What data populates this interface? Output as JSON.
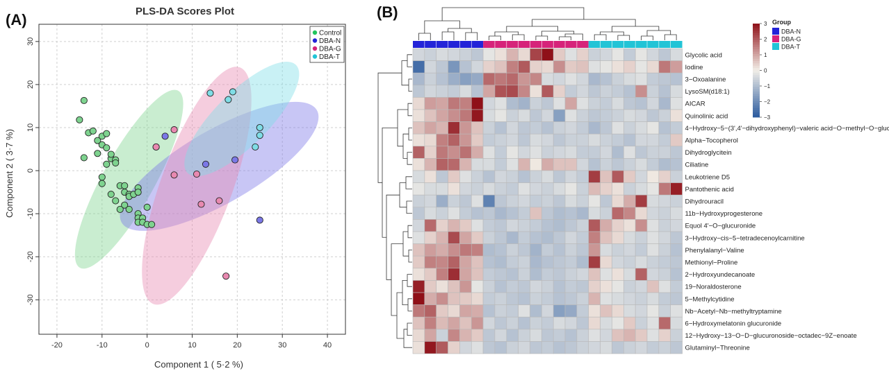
{
  "chart_data": [
    {
      "type": "scatter",
      "panel_label": "(A)",
      "title": "PLS-DA Scores Plot",
      "xlabel": "Component 1 ( 5·2 %)",
      "ylabel": "Component 2 ( 3·7 %)",
      "xlim": [
        -24,
        44
      ],
      "ylim": [
        -38,
        34
      ],
      "xticks": [
        -20,
        -10,
        0,
        10,
        20,
        30,
        40
      ],
      "yticks": [
        -30,
        -20,
        -10,
        0,
        10,
        20,
        30
      ],
      "grid": true,
      "legend_position": "top-right",
      "series": [
        {
          "name": "Control",
          "color": "#22c55e",
          "fill": "#7ed38f",
          "ellipse": {
            "cx": -4,
            "cy": -2,
            "rx": 22.5,
            "ry": 6.0,
            "angle_deg": -61
          },
          "points": [
            [
              -14,
              16.3
            ],
            [
              -15,
              11.8
            ],
            [
              -13,
              8.8
            ],
            [
              -14,
              3
            ],
            [
              -12,
              9.2
            ],
            [
              -11,
              7
            ],
            [
              -11,
              4
            ],
            [
              -10,
              8
            ],
            [
              -10,
              6
            ],
            [
              -9,
              8.6
            ],
            [
              -9,
              5.3
            ],
            [
              -8,
              2.8
            ],
            [
              -7,
              2.5
            ],
            [
              -9,
              1.5
            ],
            [
              -8,
              3.8
            ],
            [
              -7,
              1.8
            ],
            [
              -10,
              -1.5
            ],
            [
              -10,
              -3
            ],
            [
              -8,
              -5.5
            ],
            [
              -7,
              -7
            ],
            [
              -6,
              -3.5
            ],
            [
              -5,
              -3.5
            ],
            [
              -5,
              -5
            ],
            [
              -4,
              -5.5
            ],
            [
              -4,
              -6
            ],
            [
              -3,
              -5.5
            ],
            [
              -2,
              -4
            ],
            [
              -2,
              -5
            ],
            [
              -5,
              -8
            ],
            [
              -6,
              -9
            ],
            [
              -4,
              -9
            ],
            [
              -2,
              -10
            ],
            [
              -2,
              -11
            ],
            [
              -1,
              -11
            ],
            [
              -2,
              -12
            ],
            [
              -1,
              -12
            ],
            [
              0,
              -8.5
            ],
            [
              0,
              -12.5
            ],
            [
              1,
              -12.5
            ]
          ]
        },
        {
          "name": "DBA-N",
          "color": "#2323d8",
          "fill": "#7b78e6",
          "ellipse": {
            "cx": 16,
            "cy": 1,
            "rx": 25,
            "ry": 8.5,
            "angle_deg": -30
          },
          "points": [
            [
              2,
              5.5
            ],
            [
              4,
              8
            ],
            [
              13,
              1.5
            ],
            [
              19.5,
              2.5
            ],
            [
              25,
              -11.5
            ]
          ]
        },
        {
          "name": "DBA-G",
          "color": "#d6237a",
          "fill": "#e889b0",
          "ellipse": {
            "cx": 11,
            "cy": -3.5,
            "rx": 28,
            "ry": 8.3,
            "angle_deg": -70
          },
          "points": [
            [
              2,
              5.5
            ],
            [
              6,
              9.5
            ],
            [
              6,
              -1
            ],
            [
              11,
              -0.8
            ],
            [
              12,
              -7.8
            ],
            [
              16,
              -7
            ],
            [
              17.5,
              -24.5
            ]
          ]
        },
        {
          "name": "DBA-T",
          "color": "#22c4d6",
          "fill": "#7fdde6",
          "ellipse": {
            "cx": 21,
            "cy": 12,
            "rx": 17,
            "ry": 6.2,
            "angle_deg": -45
          },
          "points": [
            [
              14,
              18
            ],
            [
              18,
              16.5
            ],
            [
              19,
              18.3
            ],
            [
              24,
              5.5
            ],
            [
              25,
              8.2
            ],
            [
              25,
              10
            ]
          ]
        }
      ]
    },
    {
      "type": "heatmap",
      "panel_label": "(B)",
      "color_scale": {
        "min": -3,
        "max": 3,
        "ticks": [
          3,
          2,
          1,
          0,
          -1,
          -2,
          -3
        ],
        "low": "#2a5a9e",
        "mid": "#f2efe8",
        "high": "#8f1018"
      },
      "legend_title": "Group",
      "groups": [
        {
          "name": "DBA-N",
          "color": "#2323d8",
          "columns": 6
        },
        {
          "name": "DBA-G",
          "color": "#d6237a",
          "columns": 9
        },
        {
          "name": "DBA-T",
          "color": "#22c4d6",
          "columns": 8
        }
      ],
      "rows": [
        "Glycolic acid",
        "Iodine",
        "3−Oxoalanine",
        "LysoSM(d18:1)",
        "AICAR",
        "Quinolinic acid",
        "4−Hydroxy−5−(3',4'−dihydroxyphenyl)−valeric acid−O−methyl−O−glucuronide",
        "Alpha−Tocopherol",
        "Dihydroglycitein",
        "Ciliatine",
        "Leukotriene D5",
        "Pantothenic acid",
        "Dihydrouracil",
        "11b−Hydroxyprogesterone",
        "Equol 4'−O−glucuronide",
        "3−Hydroxy−cis−5−tetradecenoylcarnitine",
        "Phenylalanyl−Valine",
        "Methionyl−Proline",
        "2−Hydroxyundecanoate",
        "19−Noraldosterone",
        "5−Methylcytidine",
        "Nb−Acetyl−Nb−methyltryptamine",
        "6−Hydroxymelatonin glucuronide",
        "12−Hydroxy−13−O−D−glucuronoside−octadec−9Z−enoate",
        "Glutaminyl−Threonine"
      ],
      "values": [
        [
          -0.5,
          -0.6,
          -0.4,
          -0.5,
          -0.6,
          -0.8,
          -0.2,
          0.2,
          0.8,
          0.3,
          2.3,
          3.2,
          0.5,
          -0.3,
          0.4,
          -0.6,
          -0.5,
          -0.2,
          -0.7,
          -0.2,
          -0.5,
          -0.8,
          -0.4
        ],
        [
          -2.6,
          -0.5,
          -0.8,
          -1.8,
          -0.9,
          -0.5,
          0.4,
          0.6,
          1.5,
          2.0,
          0.4,
          0.3,
          1.3,
          0.5,
          0.6,
          -0.3,
          -0.2,
          0.2,
          0.4,
          -0.2,
          0.3,
          1.6,
          1.1
        ],
        [
          -1.1,
          -0.6,
          -0.9,
          -1.3,
          -1.6,
          -1.4,
          1.8,
          1.6,
          1.8,
          1.2,
          1.4,
          -0.4,
          -0.5,
          -0.3,
          -0.5,
          -1.1,
          -0.9,
          -0.6,
          -0.4,
          -0.3,
          -0.7,
          -0.8,
          -0.9
        ],
        [
          -0.8,
          -0.5,
          -0.6,
          -0.7,
          -0.4,
          -0.9,
          1.0,
          2.1,
          2.2,
          1.4,
          0.2,
          2.0,
          0.4,
          -0.7,
          -0.5,
          -0.8,
          -0.6,
          -0.7,
          -0.9,
          1.3,
          -0.6,
          -0.9,
          -0.4
        ],
        [
          0.3,
          1.1,
          1.0,
          1.6,
          1.5,
          3.2,
          -0.5,
          -0.3,
          -1.0,
          -1.2,
          -0.6,
          -0.8,
          -0.3,
          1.0,
          -0.3,
          -0.6,
          -0.7,
          -0.4,
          -0.8,
          -0.9,
          -0.5,
          -1.1,
          -0.3
        ],
        [
          0.2,
          0.6,
          1.0,
          1.3,
          1.6,
          2.9,
          -0.4,
          -0.2,
          -0.6,
          -0.4,
          -0.8,
          -0.5,
          -1.6,
          -0.3,
          -0.6,
          -0.8,
          -0.7,
          -0.6,
          -0.4,
          -0.5,
          -0.8,
          -0.6,
          0.2
        ],
        [
          0.6,
          1.0,
          0.8,
          2.6,
          1.2,
          0.6,
          -0.6,
          -0.9,
          -0.5,
          -0.8,
          -0.7,
          -0.9,
          -0.6,
          -0.5,
          -0.7,
          -1.1,
          -0.8,
          -0.3,
          -0.6,
          -0.4,
          -0.2,
          -0.9,
          -0.7
        ],
        [
          0.2,
          0.3,
          1.5,
          1.9,
          1.2,
          0.5,
          -0.7,
          -0.6,
          -0.5,
          -0.8,
          -0.4,
          -0.5,
          -0.8,
          -0.6,
          -0.6,
          -0.4,
          -0.6,
          -0.7,
          -0.9,
          -0.5,
          -0.5,
          -0.7,
          0.5
        ],
        [
          1.9,
          0.4,
          1.6,
          1.3,
          1.7,
          0.9,
          -0.3,
          -0.7,
          -0.2,
          -0.5,
          -0.3,
          -0.6,
          -0.5,
          -0.4,
          -0.7,
          -0.7,
          -0.5,
          -1.0,
          -0.3,
          -0.8,
          -0.6,
          -0.6,
          -0.8
        ],
        [
          0.2,
          0.8,
          1.9,
          1.8,
          0.8,
          -0.4,
          -0.4,
          -0.7,
          -0.3,
          0.8,
          0.1,
          0.9,
          0.6,
          0.6,
          -0.5,
          -0.9,
          -0.6,
          -0.8,
          -0.6,
          -0.4,
          -0.7,
          -1.0,
          -0.9
        ],
        [
          -0.4,
          0.2,
          -0.8,
          0.5,
          -0.3,
          -0.6,
          -0.9,
          -0.5,
          -0.6,
          -0.9,
          -0.6,
          -0.4,
          -0.8,
          -0.5,
          -0.7,
          2.4,
          0.6,
          2.0,
          0.5,
          -0.5,
          0.1,
          0.4,
          -0.6
        ],
        [
          -0.2,
          -0.4,
          -0.4,
          0.2,
          -0.5,
          -0.6,
          -0.4,
          -0.6,
          -0.7,
          -0.3,
          -0.5,
          -0.6,
          -0.4,
          -0.2,
          -0.6,
          0.7,
          0.4,
          0.2,
          -0.6,
          -0.4,
          -0.2,
          1.6,
          2.8
        ],
        [
          -0.6,
          -0.5,
          -1.3,
          -0.6,
          -0.8,
          -0.3,
          -2.2,
          -0.8,
          -0.6,
          -0.5,
          -0.7,
          -0.6,
          -0.8,
          -0.4,
          -0.6,
          -0.2,
          -0.8,
          0.3,
          0.9,
          2.4,
          -0.4,
          -0.5,
          -0.6
        ],
        [
          -0.8,
          -0.4,
          -0.6,
          -0.3,
          -0.7,
          -0.9,
          -0.8,
          -1.1,
          -0.9,
          -0.7,
          0.6,
          -0.8,
          -1.0,
          -0.9,
          -1.1,
          -0.4,
          -0.6,
          1.8,
          1.4,
          0.3,
          -0.5,
          -0.6,
          -0.4
        ],
        [
          -0.5,
          1.8,
          0.4,
          0.8,
          0.5,
          -0.3,
          -0.7,
          -0.8,
          -0.5,
          -0.6,
          -0.7,
          -0.9,
          -1.0,
          -0.8,
          -0.6,
          2.0,
          0.9,
          0.4,
          0.2,
          1.3,
          -0.3,
          -0.6,
          -0.5
        ],
        [
          -0.3,
          0.4,
          0.8,
          2.2,
          1.0,
          0.5,
          -0.6,
          -0.8,
          -1.1,
          -0.7,
          -0.9,
          -1.0,
          -0.8,
          -0.5,
          -0.7,
          1.5,
          0.6,
          0.3,
          -0.4,
          -0.6,
          -0.3,
          -0.5,
          -0.8
        ],
        [
          0.6,
          1.1,
          0.9,
          1.3,
          1.6,
          1.5,
          -1.0,
          -0.9,
          -0.6,
          -0.8,
          -1.2,
          -0.7,
          -0.9,
          -0.6,
          -0.8,
          1.2,
          -0.4,
          -0.6,
          -0.5,
          -0.7,
          -0.3,
          -0.6,
          -0.9
        ],
        [
          0.5,
          1.5,
          1.4,
          1.9,
          1.0,
          0.6,
          -0.9,
          -1.0,
          -0.7,
          -0.6,
          -1.1,
          -0.9,
          -0.8,
          -0.7,
          -1.0,
          2.4,
          0.3,
          -0.5,
          -0.6,
          -0.4,
          -0.6,
          -0.7,
          -0.8
        ],
        [
          0.2,
          0.5,
          1.5,
          2.6,
          1.0,
          0.6,
          -0.7,
          -0.8,
          -0.9,
          -0.6,
          -1.0,
          -0.7,
          -0.8,
          -0.6,
          -0.5,
          0.6,
          -0.3,
          0.2,
          -0.4,
          1.9,
          -0.5,
          -0.6,
          -0.9
        ],
        [
          2.8,
          0.5,
          0.2,
          0.6,
          1.2,
          -0.2,
          -0.6,
          -0.9,
          -0.7,
          -0.8,
          -0.5,
          -0.6,
          -0.9,
          -0.7,
          -0.8,
          0.4,
          0.2,
          -0.2,
          -0.6,
          -0.5,
          0.6,
          -0.3,
          -0.7
        ],
        [
          3.3,
          0.9,
          1.3,
          0.6,
          0.5,
          0.3,
          -0.7,
          -0.6,
          -0.8,
          -0.9,
          -0.6,
          -0.7,
          -0.9,
          -0.8,
          -0.6,
          0.8,
          -0.3,
          -0.4,
          -0.5,
          -0.6,
          -0.4,
          -0.7,
          -0.8
        ],
        [
          1.6,
          1.9,
          0.5,
          0.3,
          1.0,
          0.9,
          -0.9,
          -0.6,
          -0.7,
          -0.3,
          -1.0,
          -0.5,
          -1.6,
          -1.4,
          -0.7,
          0.2,
          0.6,
          0.3,
          -0.4,
          -0.5,
          -0.2,
          -0.6,
          -0.3
        ],
        [
          0.6,
          1.5,
          0.7,
          1.0,
          0.6,
          1.2,
          -0.5,
          -0.8,
          -0.6,
          -0.9,
          -0.6,
          -0.7,
          -0.4,
          -0.5,
          -0.8,
          0.3,
          -0.4,
          -0.2,
          0.5,
          -0.6,
          -0.3,
          1.8,
          -0.4
        ],
        [
          0.3,
          1.0,
          -0.6,
          1.4,
          0.8,
          0.5,
          -0.8,
          -0.5,
          -0.9,
          -0.6,
          -0.4,
          -0.8,
          -0.7,
          -0.9,
          -0.6,
          -0.3,
          -0.5,
          0.6,
          0.8,
          0.5,
          -0.3,
          0.4,
          -0.6
        ],
        [
          0.2,
          2.9,
          2.0,
          0.4,
          -0.5,
          -0.3,
          -0.8,
          -0.9,
          -0.6,
          -0.5,
          -0.8,
          -0.7,
          -0.9,
          -0.8,
          -0.6,
          -0.5,
          -0.4,
          -0.8,
          -0.6,
          -0.5,
          -0.7,
          -0.6,
          -0.8
        ]
      ]
    }
  ]
}
